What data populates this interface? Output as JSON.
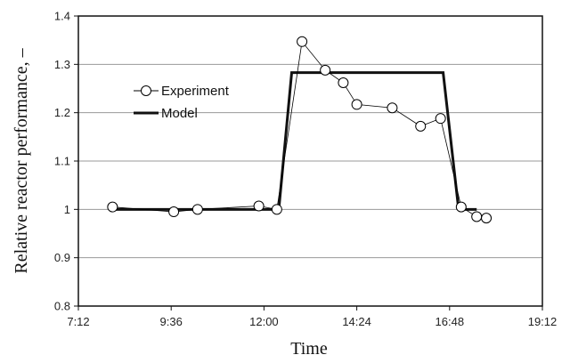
{
  "chart_data": {
    "type": "line",
    "title": "",
    "xlabel": "Time",
    "ylabel": "Relative reactor performance, –",
    "xlim": [
      "7:12",
      "19:12"
    ],
    "ylim": [
      0.8,
      1.4
    ],
    "x_ticks": [
      "7:12",
      "9:36",
      "12:00",
      "14:24",
      "16:48",
      "19:12"
    ],
    "y_ticks": [
      "0.8",
      "0.9",
      "1",
      "1.1",
      "1.2",
      "1.3",
      "1.4"
    ],
    "grid": "horizontal",
    "legend_position": "upper-left",
    "series": [
      {
        "name": "Experiment",
        "style": "thin line with open circle markers",
        "color": "#000000",
        "points": [
          {
            "x": "8:05",
            "y": 1.005
          },
          {
            "x": "9:40",
            "y": 0.995
          },
          {
            "x": "10:17",
            "y": 1.0
          },
          {
            "x": "11:52",
            "y": 1.007
          },
          {
            "x": "12:20",
            "y": 1.0
          },
          {
            "x": "12:59",
            "y": 1.347
          },
          {
            "x": "13:35",
            "y": 1.288
          },
          {
            "x": "14:03",
            "y": 1.262
          },
          {
            "x": "14:24",
            "y": 1.217
          },
          {
            "x": "15:19",
            "y": 1.21
          },
          {
            "x": "16:03",
            "y": 1.172
          },
          {
            "x": "16:34",
            "y": 1.188
          },
          {
            "x": "17:06",
            "y": 1.005
          },
          {
            "x": "17:30",
            "y": 0.985
          },
          {
            "x": "17:45",
            "y": 0.982
          }
        ]
      },
      {
        "name": "Model",
        "style": "thick solid line",
        "color": "#111111",
        "points": [
          {
            "x": "8:05",
            "y": 1.0
          },
          {
            "x": "12:23",
            "y": 1.0
          },
          {
            "x": "12:43",
            "y": 1.283
          },
          {
            "x": "16:38",
            "y": 1.283
          },
          {
            "x": "17:02",
            "y": 1.0
          },
          {
            "x": "17:30",
            "y": 1.0
          }
        ]
      }
    ]
  }
}
